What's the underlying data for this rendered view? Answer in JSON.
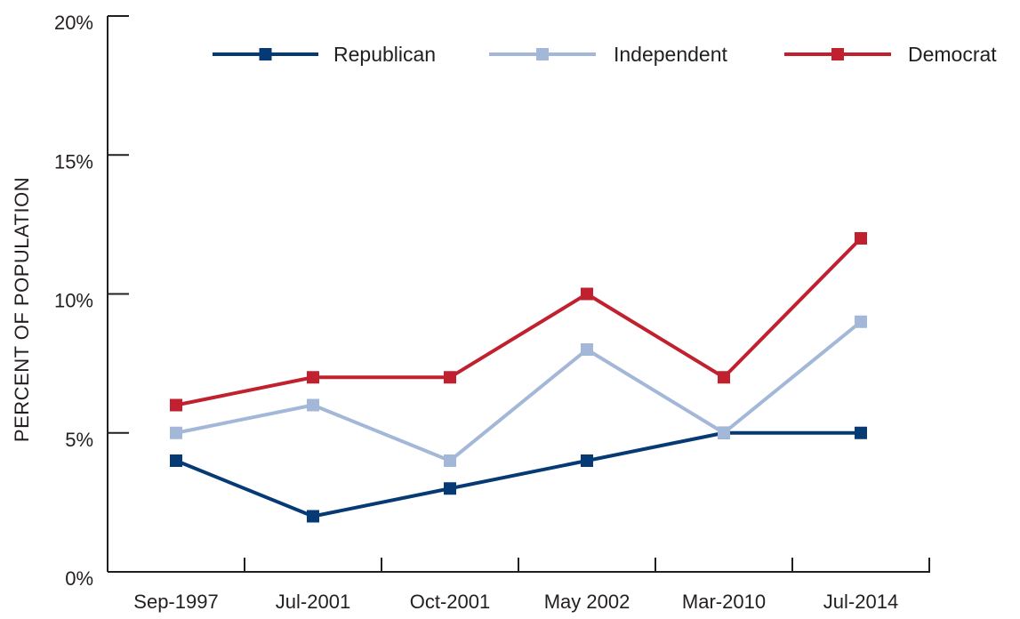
{
  "chart_data": {
    "type": "line",
    "title": "",
    "xlabel": "",
    "ylabel": "PERCENT OF POPULATION",
    "categories": [
      "Sep-1997",
      "Jul-2001",
      "Oct-2001",
      "May 2002",
      "Mar-2010",
      "Jul-2014"
    ],
    "ylim": [
      0,
      20
    ],
    "yticks": [
      0,
      5,
      10,
      15,
      20
    ],
    "ytick_labels": [
      "0%",
      "5%",
      "10%",
      "15%",
      "20%"
    ],
    "grid": false,
    "legend_position": "top",
    "series": [
      {
        "name": "Republican",
        "color": "#053a74",
        "values": [
          4,
          2,
          3,
          4,
          5,
          5
        ]
      },
      {
        "name": "Independent",
        "color": "#a3b7d8",
        "values": [
          5,
          6,
          4,
          8,
          5,
          9
        ]
      },
      {
        "name": "Democrat",
        "color": "#c1202f",
        "values": [
          6,
          7,
          7,
          10,
          7,
          12
        ]
      }
    ]
  }
}
